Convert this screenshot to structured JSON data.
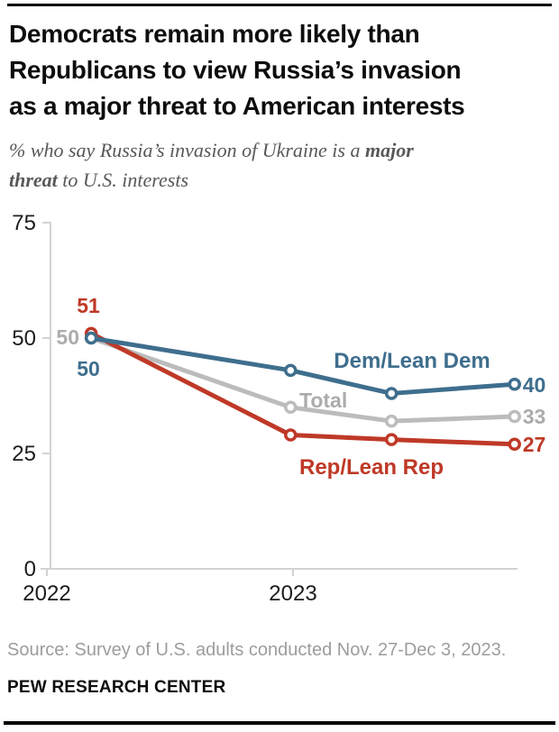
{
  "page": {
    "title_lines": [
      "Democrats remain more likely than",
      "Republicans to view Russia’s invasion",
      "as a major threat to American interests"
    ],
    "subtitle_lines": [
      {
        "segments": [
          {
            "t": "% who say Russia’s invasion of Ukraine is a "
          },
          {
            "t": "major"
          }
        ]
      },
      {
        "segments": [
          {
            "t": "threat"
          },
          {
            "t": " to U.S. interests"
          }
        ]
      }
    ],
    "source": "Source: Survey of U.S. adults conducted Nov. 27-Dec 3, 2023.",
    "footer_brand": "PEW RESEARCH CENTER"
  },
  "colors": {
    "dem_blue": "#3f6e8d",
    "rep_red": "#bf3927",
    "total_gray": "#bcbcbc",
    "total_label_gray": "#acacac",
    "axis": "#d2d2d2",
    "axis_text": "#1c1c1c",
    "title_text": "#0d0d0d",
    "subtitle_text": "#585858",
    "source_text": "#9d9d9d"
  },
  "chart_data": {
    "type": "line",
    "x_unit": "year_decimal",
    "x": [
      2022.18,
      2022.99,
      2023.4,
      2023.9
    ],
    "x_ticks": [
      {
        "label": "2022",
        "year": 2022
      },
      {
        "label": "2023",
        "year": 2023
      }
    ],
    "y_ticks": [
      0,
      25,
      50,
      75
    ],
    "ylim": [
      0,
      75
    ],
    "grid": false,
    "legend_position": "inline-labels",
    "series": [
      {
        "key": "total",
        "name": "Total",
        "color": "#bcbcbc",
        "label_color": "#acacac",
        "values": [
          50,
          35,
          32,
          33
        ],
        "first_label": "50",
        "last_label": "33"
      },
      {
        "key": "rep",
        "name": "Rep/Lean Rep",
        "color": "#bf3927",
        "label_color": "#bf3927",
        "values": [
          51,
          29,
          28,
          27
        ],
        "first_label": "51",
        "last_label": "27"
      },
      {
        "key": "dem",
        "name": "Dem/Lean Dem",
        "color": "#3f6e8d",
        "label_color": "#3f6e8d",
        "values": [
          50,
          43,
          38,
          40
        ],
        "first_label": "50",
        "last_label": "40"
      }
    ]
  }
}
